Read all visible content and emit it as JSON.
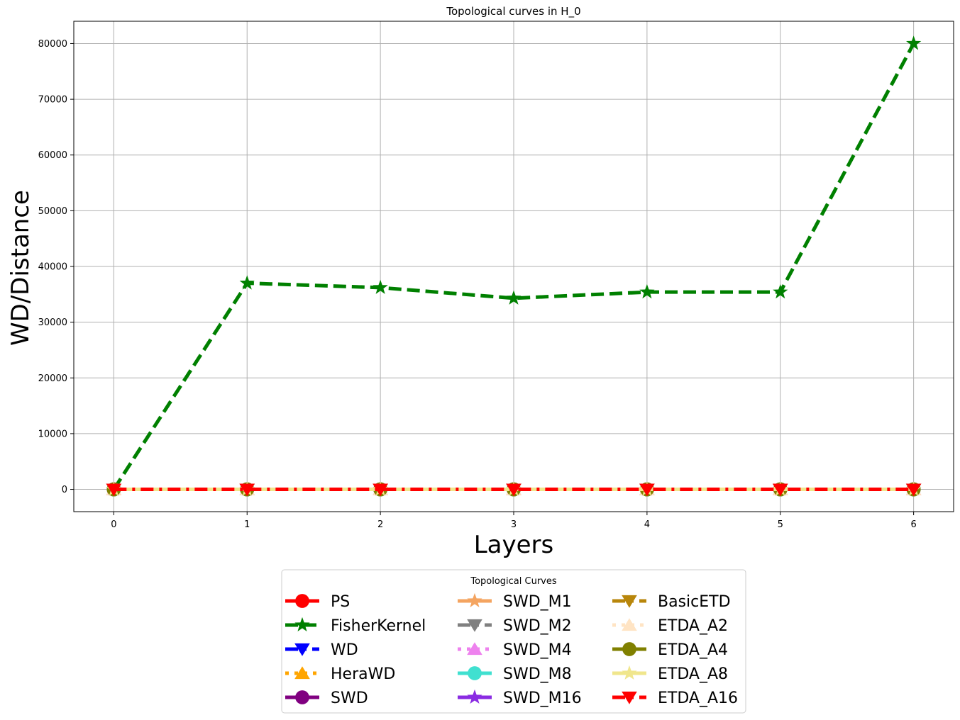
{
  "chart_data": {
    "type": "line",
    "title": "Topological curves in H_0",
    "xlabel": "Layers",
    "ylabel": "WD/Distance",
    "x": [
      0,
      1,
      2,
      3,
      4,
      5,
      6
    ],
    "x_ticks": [
      "0",
      "1",
      "2",
      "3",
      "4",
      "5",
      "6"
    ],
    "y_ticks": [
      "0",
      "10000",
      "20000",
      "30000",
      "40000",
      "50000",
      "60000",
      "70000",
      "80000"
    ],
    "xlim": [
      -0.3,
      6.3
    ],
    "ylim": [
      -4000,
      84000
    ],
    "grid": true,
    "legend": {
      "title": "Topological Curves",
      "placement": "lower-center-outside",
      "columns": 3
    },
    "series": [
      {
        "name": "PS",
        "color": "#ff0000",
        "linestyle": "solid",
        "marker": "circle",
        "values": [
          0,
          0,
          0,
          0,
          0,
          0,
          0
        ]
      },
      {
        "name": "FisherKernel",
        "color": "#008000",
        "linestyle": "dashed",
        "marker": "star",
        "values": [
          0,
          37000,
          36200,
          34300,
          35400,
          35400,
          80000
        ]
      },
      {
        "name": "WD",
        "color": "#0000ff",
        "linestyle": "dashdot",
        "marker": "triangle-down",
        "values": [
          0,
          0,
          0,
          0,
          0,
          0,
          0
        ]
      },
      {
        "name": "HeraWD",
        "color": "#ffa500",
        "linestyle": "dotted",
        "marker": "triangle-up",
        "values": [
          0,
          0,
          0,
          0,
          0,
          0,
          0
        ]
      },
      {
        "name": "SWD",
        "color": "#800080",
        "linestyle": "solid",
        "marker": "circle",
        "values": [
          0,
          0,
          0,
          0,
          0,
          0,
          0
        ]
      },
      {
        "name": "SWD_M1",
        "color": "#f4a460",
        "linestyle": "solid",
        "marker": "star",
        "values": [
          0,
          0,
          0,
          0,
          0,
          0,
          0
        ]
      },
      {
        "name": "SWD_M2",
        "color": "#808080",
        "linestyle": "dashdot",
        "marker": "triangle-down",
        "values": [
          0,
          0,
          0,
          0,
          0,
          0,
          0
        ]
      },
      {
        "name": "SWD_M4",
        "color": "#ee82ee",
        "linestyle": "dotted",
        "marker": "triangle-up",
        "values": [
          0,
          0,
          0,
          0,
          0,
          0,
          0
        ]
      },
      {
        "name": "SWD_M8",
        "color": "#40e0d0",
        "linestyle": "solid",
        "marker": "circle",
        "values": [
          0,
          0,
          0,
          0,
          0,
          0,
          0
        ]
      },
      {
        "name": "SWD_M16",
        "color": "#8a2be2",
        "linestyle": "solid",
        "marker": "star",
        "values": [
          0,
          0,
          0,
          0,
          0,
          0,
          0
        ]
      },
      {
        "name": "BasicETD",
        "color": "#b8860b",
        "linestyle": "dashdot",
        "marker": "triangle-down",
        "values": [
          0,
          0,
          0,
          0,
          0,
          0,
          0
        ]
      },
      {
        "name": "ETDA_A2",
        "color": "#ffe4c4",
        "linestyle": "dotted",
        "marker": "triangle-up",
        "values": [
          0,
          0,
          0,
          0,
          0,
          0,
          0
        ]
      },
      {
        "name": "ETDA_A4",
        "color": "#808000",
        "linestyle": "solid",
        "marker": "circle",
        "values": [
          0,
          0,
          0,
          0,
          0,
          0,
          0
        ]
      },
      {
        "name": "ETDA_A8",
        "color": "#f0e68c",
        "linestyle": "solid",
        "marker": "star",
        "values": [
          0,
          0,
          0,
          0,
          0,
          0,
          0
        ]
      },
      {
        "name": "ETDA_A16",
        "color": "#ff0000",
        "linestyle": "dashdot",
        "marker": "triangle-down",
        "values": [
          0,
          0,
          0,
          0,
          0,
          0,
          0
        ]
      }
    ]
  }
}
